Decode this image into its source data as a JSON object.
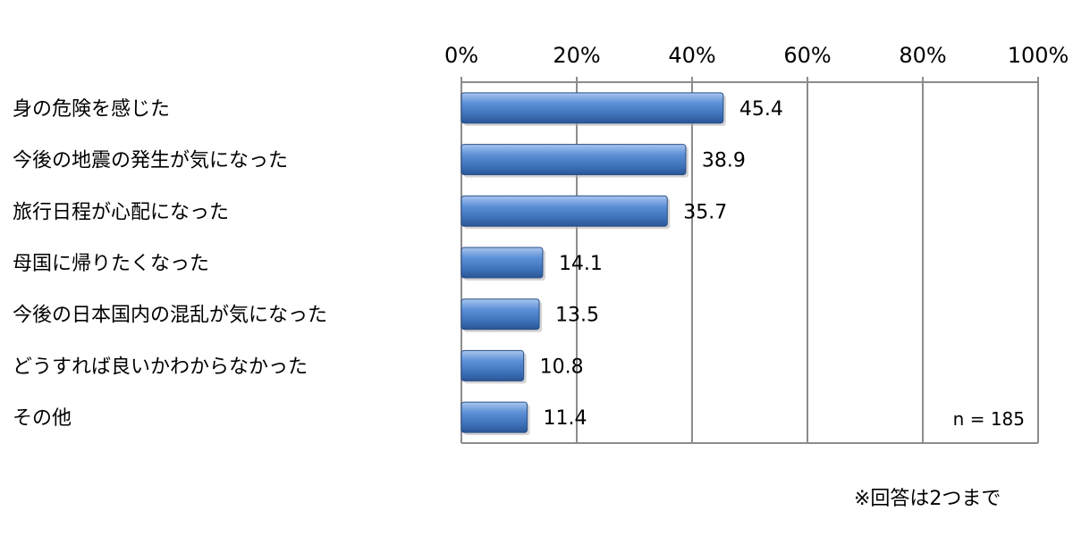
{
  "chart_data": {
    "type": "bar",
    "orientation": "horizontal",
    "categories": [
      "身の危険を感じた",
      "今後の地震の発生が気になった",
      "旅行日程が心配になった",
      "母国に帰りたくなった",
      "今後の日本国内の混乱が気になった",
      "どうすれば良いかわからなかった",
      "その他"
    ],
    "values": [
      45.4,
      38.9,
      35.7,
      14.1,
      13.5,
      10.8,
      11.4
    ],
    "value_labels": [
      "45.4",
      "38.9",
      "35.7",
      "14.1",
      "13.5",
      "10.8",
      "11.4"
    ],
    "x_ticks": [
      "0%",
      "20%",
      "40%",
      "60%",
      "80%",
      "100%"
    ],
    "xlim": [
      0,
      100
    ],
    "grid": true,
    "bar_color": "#4a7ebb",
    "sample_note": "n = 185",
    "title": "",
    "xlabel": "",
    "ylabel": ""
  },
  "footnote": "※回答は2つまで"
}
